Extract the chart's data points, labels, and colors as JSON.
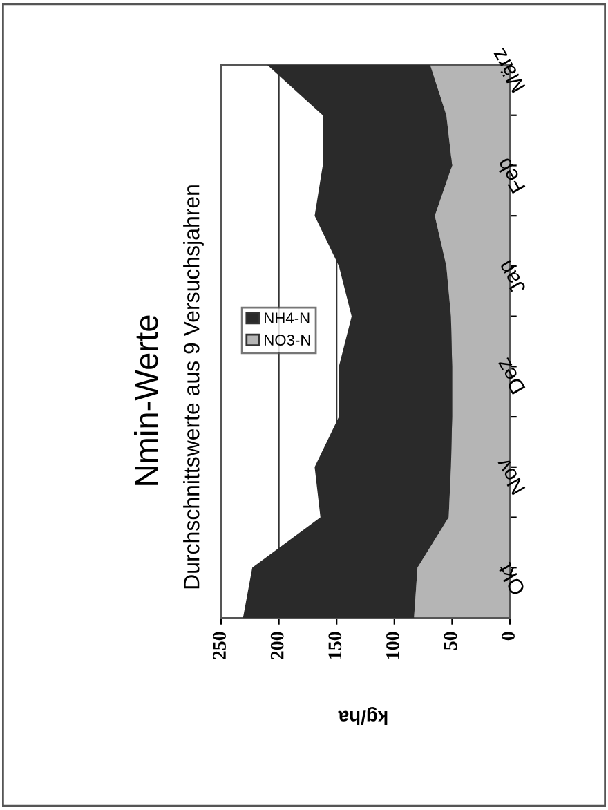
{
  "chart_data": {
    "type": "area",
    "orientation": "horizontal",
    "title": "Nmin-Werte",
    "subtitle": "Durchschnittswerte aus 9 Versuchsjahren",
    "xlabel": "kg/ha",
    "categories": [
      "März",
      null,
      "Feb",
      null,
      "Jan",
      null,
      "Dez",
      null,
      "Nov",
      null,
      "Okt",
      null
    ],
    "stacked": true,
    "series": [
      {
        "name": "NO3-N",
        "color": "#b5b5b5",
        "values": [
          69,
          55,
          50,
          65,
          55,
          51,
          50,
          50,
          51,
          53,
          80,
          83
        ]
      },
      {
        "name": "NH4-N",
        "color": "#2a2a2a",
        "values": [
          141,
          107,
          112,
          104,
          93,
          86,
          98,
          98,
          118,
          111,
          143,
          148
        ]
      }
    ],
    "xlim": [
      250,
      0
    ],
    "xticks": [
      250,
      200,
      150,
      100,
      50,
      0
    ],
    "grid": "x",
    "legend": "left"
  }
}
